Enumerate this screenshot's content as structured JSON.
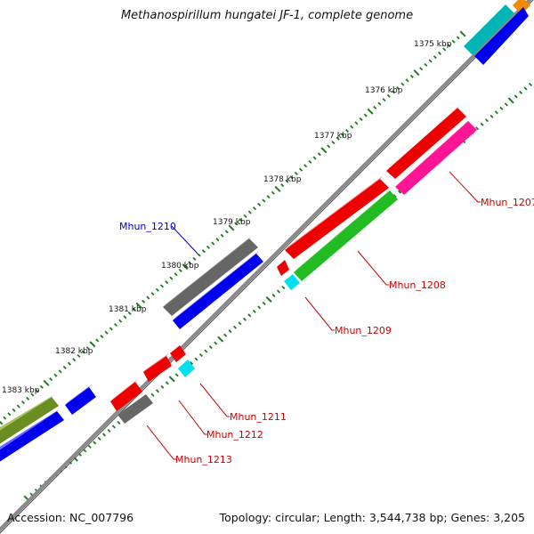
{
  "title": "Methanospirillum hungatei JF-1, complete genome",
  "accession": "Accession: NC_007796",
  "summary": "Topology: circular; Length: 3,544,738 bp; Genes: 3,205",
  "colors": {
    "backbone": "#8a8a8a",
    "ticks": "#1f7a1f",
    "label_red": "#cc0000",
    "label_blue": "#0000cc"
  },
  "tick_labels": [
    "1375 kbp",
    "1376 kbp",
    "1377 kbp",
    "1378 kbp",
    "1379 kbp",
    "1380 kbp",
    "1381 kbp",
    "1382 kbp",
    "1383 kbp"
  ],
  "gene_labels": {
    "mhun_1207": "Mhun_1207",
    "mhun_1208": "Mhun_1208",
    "mhun_1209": "Mhun_1209",
    "mhun_1210": "Mhun_1210",
    "mhun_1211": "Mhun_1211",
    "mhun_1212": "Mhun_1212",
    "mhun_1213": "Mhun_1213"
  }
}
